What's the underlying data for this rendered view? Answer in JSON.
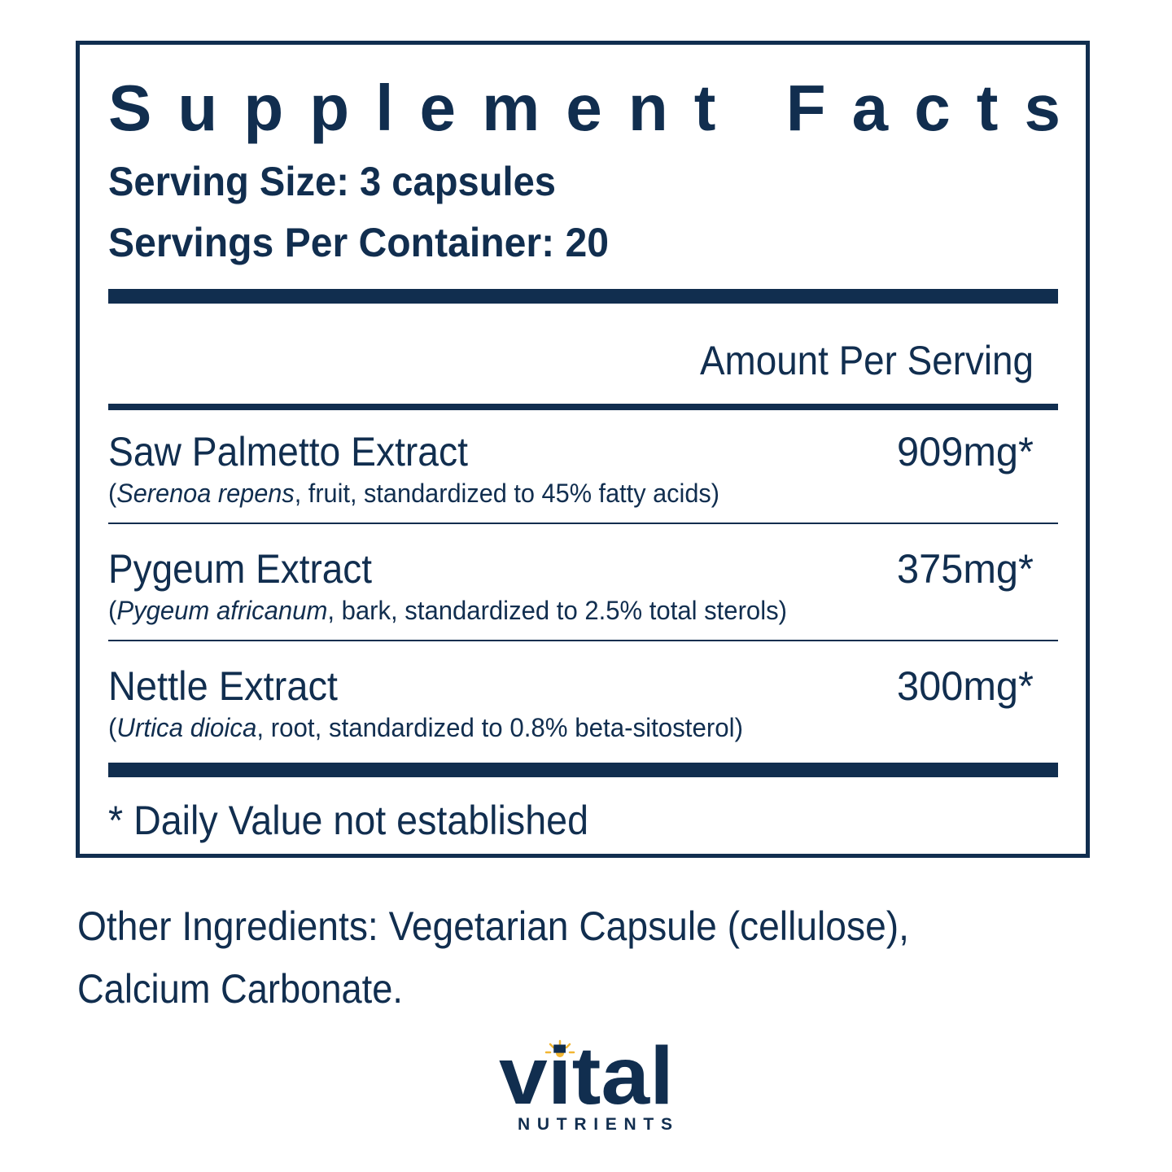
{
  "header": {
    "title": "Supplement Facts",
    "serving_size": "Serving Size: 3 capsules",
    "servings_per_container": "Servings Per Container: 20"
  },
  "table": {
    "column_header": "Amount Per Serving",
    "rows": [
      {
        "name": "Saw Palmetto Extract",
        "description": {
          "open": "(",
          "species": "Serenoa repens",
          "rest": ", fruit, standardized to 45% fatty acids)"
        },
        "amount": "909mg*"
      },
      {
        "name": "Pygeum Extract",
        "description": {
          "open": "(",
          "species": "Pygeum africanum",
          "rest": ", bark, standardized to 2.5% total sterols)"
        },
        "amount": "375mg*"
      },
      {
        "name": "Nettle Extract",
        "description": {
          "open": "(",
          "species": "Urtica dioica",
          "rest": ", root, standardized to 0.8% beta-sitosterol)"
        },
        "amount": "300mg*"
      }
    ],
    "footnote": "* Daily Value not established"
  },
  "other_ingredients": [
    "Other Ingredients: Vegetarian Capsule (cellulose),",
    "Calcium Carbonate."
  ],
  "logo": {
    "brand": "vital",
    "tagline": "NUTRIENTS"
  }
}
